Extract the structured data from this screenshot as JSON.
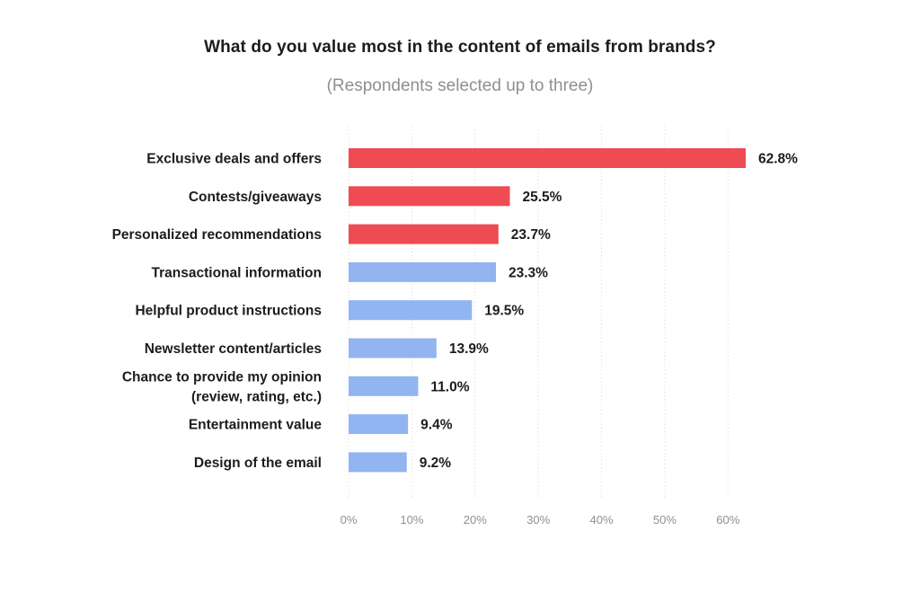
{
  "chart_data": {
    "type": "bar",
    "orientation": "horizontal",
    "title": "What do you value most in the content of emails from brands?",
    "subtitle": "(Respondents selected up to three)",
    "categories": [
      "Exclusive deals and offers",
      "Contests/giveaways",
      "Personalized recommendations",
      "Transactional information",
      "Helpful product instructions",
      "Newsletter content/articles",
      "Chance to provide my opinion (review, rating, etc.)",
      "Entertainment value",
      "Design of the email"
    ],
    "category_lines": [
      [
        "Exclusive deals and offers"
      ],
      [
        "Contests/giveaways"
      ],
      [
        "Personalized recommendations"
      ],
      [
        "Transactional information"
      ],
      [
        "Helpful product instructions"
      ],
      [
        "Newsletter content/articles"
      ],
      [
        "Chance to provide my opinion",
        "(review, rating, etc.)"
      ],
      [
        "Entertainment value"
      ],
      [
        "Design of the email"
      ]
    ],
    "values": [
      62.8,
      25.5,
      23.7,
      23.3,
      19.5,
      13.9,
      11.0,
      9.4,
      9.2
    ],
    "value_labels": [
      "62.8%",
      "25.5%",
      "23.7%",
      "23.3%",
      "19.5%",
      "13.9%",
      "11.0%",
      "9.4%",
      "9.2%"
    ],
    "xlim": [
      0,
      62.8
    ],
    "xticks": [
      0,
      10,
      20,
      30,
      40,
      50,
      60
    ],
    "xtick_labels": [
      "0%",
      "10%",
      "20%",
      "30%",
      "40%",
      "50%",
      "60%"
    ],
    "grid": true,
    "legend": "none",
    "colors": {
      "highlight": "#ef4b52",
      "default": "#92b4f0"
    },
    "highlighted_count": 3
  }
}
